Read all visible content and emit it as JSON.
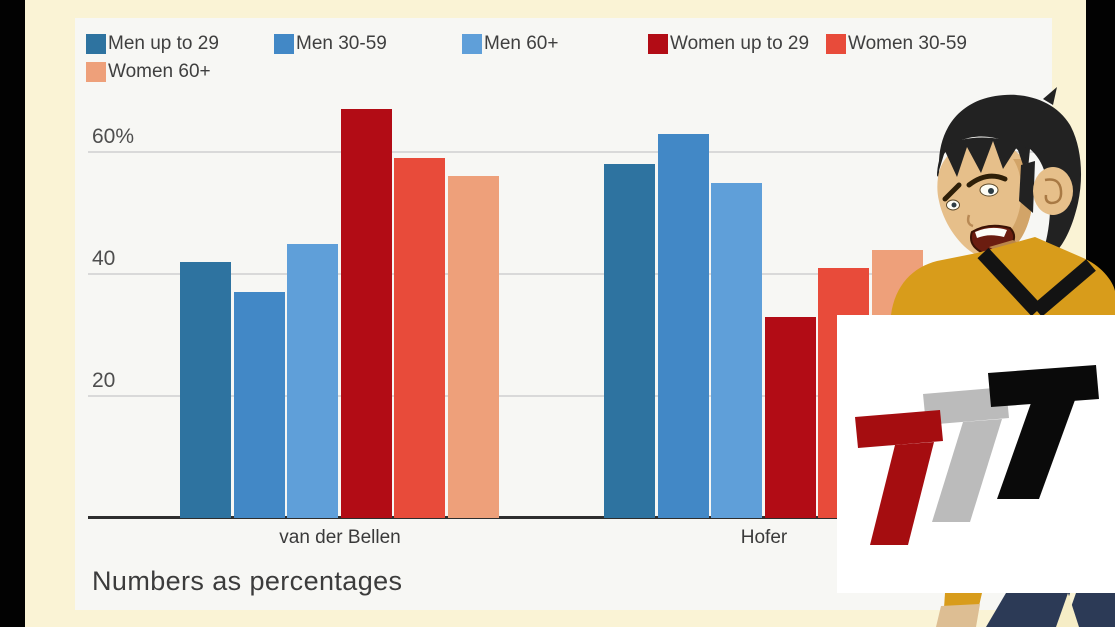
{
  "scene": {
    "background_color": "#faf3d5",
    "edge_bar_color": "#020202",
    "panel_color": "#f7f7f4"
  },
  "chart_data": {
    "type": "bar",
    "title": "",
    "categories": [
      "van der Bellen",
      "Hofer"
    ],
    "series": [
      {
        "name": "Men up to 29",
        "color": "#2e73a0",
        "values": [
          42,
          58
        ]
      },
      {
        "name": "Men 30-59",
        "color": "#4288c6",
        "values": [
          37,
          63
        ]
      },
      {
        "name": "Men 60+",
        "color": "#5f9fd9",
        "values": [
          45,
          55
        ]
      },
      {
        "name": "Women up to 29",
        "color": "#b20c15",
        "values": [
          67,
          33
        ]
      },
      {
        "name": "Women 30-59",
        "color": "#e84b3a",
        "values": [
          59,
          41
        ]
      },
      {
        "name": "Women 60+",
        "color": "#eea07a",
        "values": [
          56,
          44
        ]
      }
    ],
    "xlabel": "",
    "ylabel": "",
    "ylim": [
      0,
      70
    ],
    "yticks": [
      {
        "value": 60,
        "label": "60%"
      },
      {
        "value": 40,
        "label": "40"
      },
      {
        "value": 20,
        "label": "20"
      }
    ],
    "grid": true,
    "legend_position": "top",
    "caption": "Numbers as percentages"
  },
  "overlay": {
    "logo": {
      "letters": "TTT",
      "t1_color": "#a50d10",
      "t2_color": "#bbbbbb",
      "t3_color": "#0a0a0a",
      "box_color": "#ffffff"
    },
    "character": {
      "hair_color": "#222222",
      "skin_color": "#e6bf8a",
      "skin_shadow_color": "#d2a468",
      "shirt_color": "#d89c1b",
      "collar_color": "#131313",
      "mouth_color": "#6b1d10",
      "teeth_color": "#fdfdf8",
      "pants_color": "#2c3a56",
      "gap_color": "#f6edc6",
      "hand_color": "#ddbe93"
    }
  }
}
